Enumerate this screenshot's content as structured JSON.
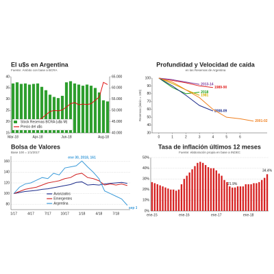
{
  "chart_data": [
    {
      "type": "combo",
      "title": "El u$s en Argentina",
      "subtitle": "Fuente: Ámbito con base a BCRA",
      "categories": [
        "Mar-18",
        null,
        null,
        null,
        null,
        null,
        "Apr-18",
        null,
        null,
        null,
        null,
        null,
        null,
        "Jun-18",
        null,
        null,
        null,
        null,
        null,
        null,
        null,
        null,
        "Aug-18",
        null
      ],
      "series": [
        {
          "name": "Stock Reservas BCRA (u$s M)",
          "type": "bar",
          "axis": "y2",
          "color": "#2e9e2e",
          "values": [
            62000,
            62500,
            61800,
            62000,
            61500,
            61800,
            62000,
            60500,
            59000,
            57000,
            56000,
            55500,
            56500,
            62500,
            63000,
            62000,
            61500,
            61000,
            61500,
            61000,
            60000,
            58000,
            54500,
            54000
          ]
        },
        {
          "name": "Precio del u$s",
          "type": "line",
          "color": "#e01010",
          "values": [
            20.2,
            20.3,
            20.2,
            20.3,
            20.4,
            20.5,
            20.6,
            21.5,
            23.0,
            24.5,
            25.0,
            24.8,
            25.2,
            26.5,
            28.0,
            28.5,
            27.5,
            27.8,
            27.6,
            28.0,
            29.5,
            31.0,
            37.5,
            36.5
          ]
        }
      ],
      "ylim": [
        15,
        40
      ],
      "yticks": [
        15,
        20,
        25,
        30,
        35,
        40
      ],
      "y2lim": [
        40000,
        65000
      ],
      "y2ticks": [
        {
          "value": 40000,
          "label": "40.000"
        },
        {
          "value": 45000,
          "label": "45.000"
        },
        {
          "value": 50000,
          "label": "50.000"
        },
        {
          "value": 55000,
          "label": "55.000"
        },
        {
          "value": 60000,
          "label": "60.000"
        },
        {
          "value": 65000,
          "label": "65.000"
        }
      ],
      "grid": false,
      "legend": "lower left"
    },
    {
      "type": "line",
      "title": "Profundidad y Velocidad de caída",
      "subtitle": "en las Reservas de Argentina",
      "ylabel": "Reservas (inicio = 100)",
      "series": [
        {
          "name": "2018",
          "color": "#1a9e1a",
          "x": [
            0,
            1,
            2,
            3
          ],
          "values": [
            100,
            88,
            80,
            82
          ]
        },
        {
          "name": "1989-90",
          "color": "#e02020",
          "x": [
            0,
            1,
            2,
            3,
            4
          ],
          "values": [
            100,
            97,
            94,
            90,
            88
          ]
        },
        {
          "name": "2013-14",
          "color": "#8040a0",
          "x": [
            0,
            1,
            2,
            3
          ],
          "values": [
            100,
            98,
            95,
            92
          ]
        },
        {
          "name": "1981",
          "color": "#d0b000",
          "x": [
            0,
            1,
            2,
            3
          ],
          "values": [
            100,
            93,
            85,
            78
          ]
        },
        {
          "name": "2008-09",
          "color": "#1a2a8a",
          "x": [
            0,
            1,
            2,
            3,
            4
          ],
          "values": [
            100,
            90,
            78,
            65,
            58
          ]
        },
        {
          "name": "2001-02",
          "color": "#f08020",
          "x": [
            0,
            1,
            2,
            3,
            4,
            5,
            6,
            7
          ],
          "values": [
            100,
            95,
            85,
            75,
            60,
            50,
            48,
            45
          ]
        }
      ],
      "xlim": [
        -0.5,
        8
      ],
      "xticks": [
        0,
        1,
        2,
        3,
        4,
        5,
        6
      ],
      "ylim": [
        30,
        100
      ],
      "yticks": [
        30,
        40,
        50,
        60,
        70,
        80,
        90,
        100
      ],
      "grid": false,
      "direct_labels": true
    },
    {
      "type": "line",
      "title": "Bolsa de Valores",
      "subtitle": "Base 100 = 1/1/2017",
      "categories": [
        "1/17",
        null,
        null,
        "4/17",
        null,
        null,
        "7/17",
        null,
        null,
        "10/17",
        null,
        null,
        "1/18",
        null,
        null,
        "4/18",
        null,
        null,
        "7/18",
        null,
        null
      ],
      "series": [
        {
          "name": "Avanzados",
          "color": "#1a2a8a",
          "values": [
            100,
            102,
            104,
            105,
            106,
            108,
            109,
            111,
            113,
            115,
            117,
            121,
            122,
            116,
            117,
            116,
            118,
            119,
            120,
            121,
            119
          ]
        },
        {
          "name": "Emergentes",
          "color": "#d02020",
          "values": [
            100,
            104,
            108,
            110,
            112,
            116,
            120,
            122,
            124,
            128,
            130,
            136,
            138,
            130,
            128,
            124,
            116,
            118,
            116,
            118,
            115
          ]
        },
        {
          "name": "Argentina",
          "color": "#3a9ad9",
          "values": [
            100,
            112,
            118,
            120,
            125,
            130,
            128,
            138,
            135,
            148,
            150,
            152,
            161,
            150,
            140,
            128,
            105,
            100,
            95,
            90,
            78
          ]
        }
      ],
      "ylim": [
        70,
        170
      ],
      "yticks": [
        80,
        100,
        120,
        140,
        160
      ],
      "grid": true,
      "legend": "lower center",
      "annotations": [
        "ene 30, 2018, 161",
        "sep 13, 2018, 78"
      ]
    },
    {
      "type": "bar",
      "title": "Tasa de inflación últimos 12 meses",
      "subtitle": "Fuente: elaboración propia en base a INDEC",
      "categories": [
        "ene-15",
        null,
        null,
        null,
        null,
        null,
        null,
        null,
        null,
        null,
        null,
        null,
        "ene-16",
        null,
        null,
        null,
        null,
        null,
        null,
        null,
        null,
        null,
        null,
        null,
        "ene-17",
        null,
        null,
        null,
        null,
        null,
        null,
        null,
        null,
        null,
        null,
        null,
        "ene-18",
        null,
        null,
        null,
        null,
        null,
        null,
        null
      ],
      "values": [
        27,
        26,
        25,
        24,
        23,
        22,
        21,
        20,
        20,
        19,
        20,
        25,
        30,
        33,
        36,
        39,
        42,
        45,
        46,
        45,
        43,
        41,
        40,
        40,
        38,
        35,
        33,
        29,
        27,
        23,
        21.9,
        22,
        23,
        23,
        23,
        25,
        25,
        25,
        26,
        26,
        27,
        29,
        31,
        34.4
      ],
      "value_labels": [
        null,
        null,
        null,
        null,
        null,
        null,
        null,
        null,
        null,
        null,
        null,
        null,
        null,
        null,
        null,
        null,
        null,
        null,
        null,
        null,
        null,
        null,
        null,
        null,
        null,
        null,
        null,
        null,
        null,
        null,
        "21.9%",
        null,
        null,
        null,
        null,
        null,
        null,
        null,
        null,
        null,
        null,
        null,
        null,
        "34.4%"
      ],
      "color": "#d62020",
      "ylim": [
        0,
        50
      ],
      "yticks": [
        {
          "value": 0,
          "label": "0%"
        },
        {
          "value": 10,
          "label": "10%"
        },
        {
          "value": 20,
          "label": "20%"
        },
        {
          "value": 30,
          "label": "30%"
        },
        {
          "value": 40,
          "label": "40%"
        },
        {
          "value": 50,
          "label": "50%"
        }
      ],
      "grid": true
    }
  ]
}
